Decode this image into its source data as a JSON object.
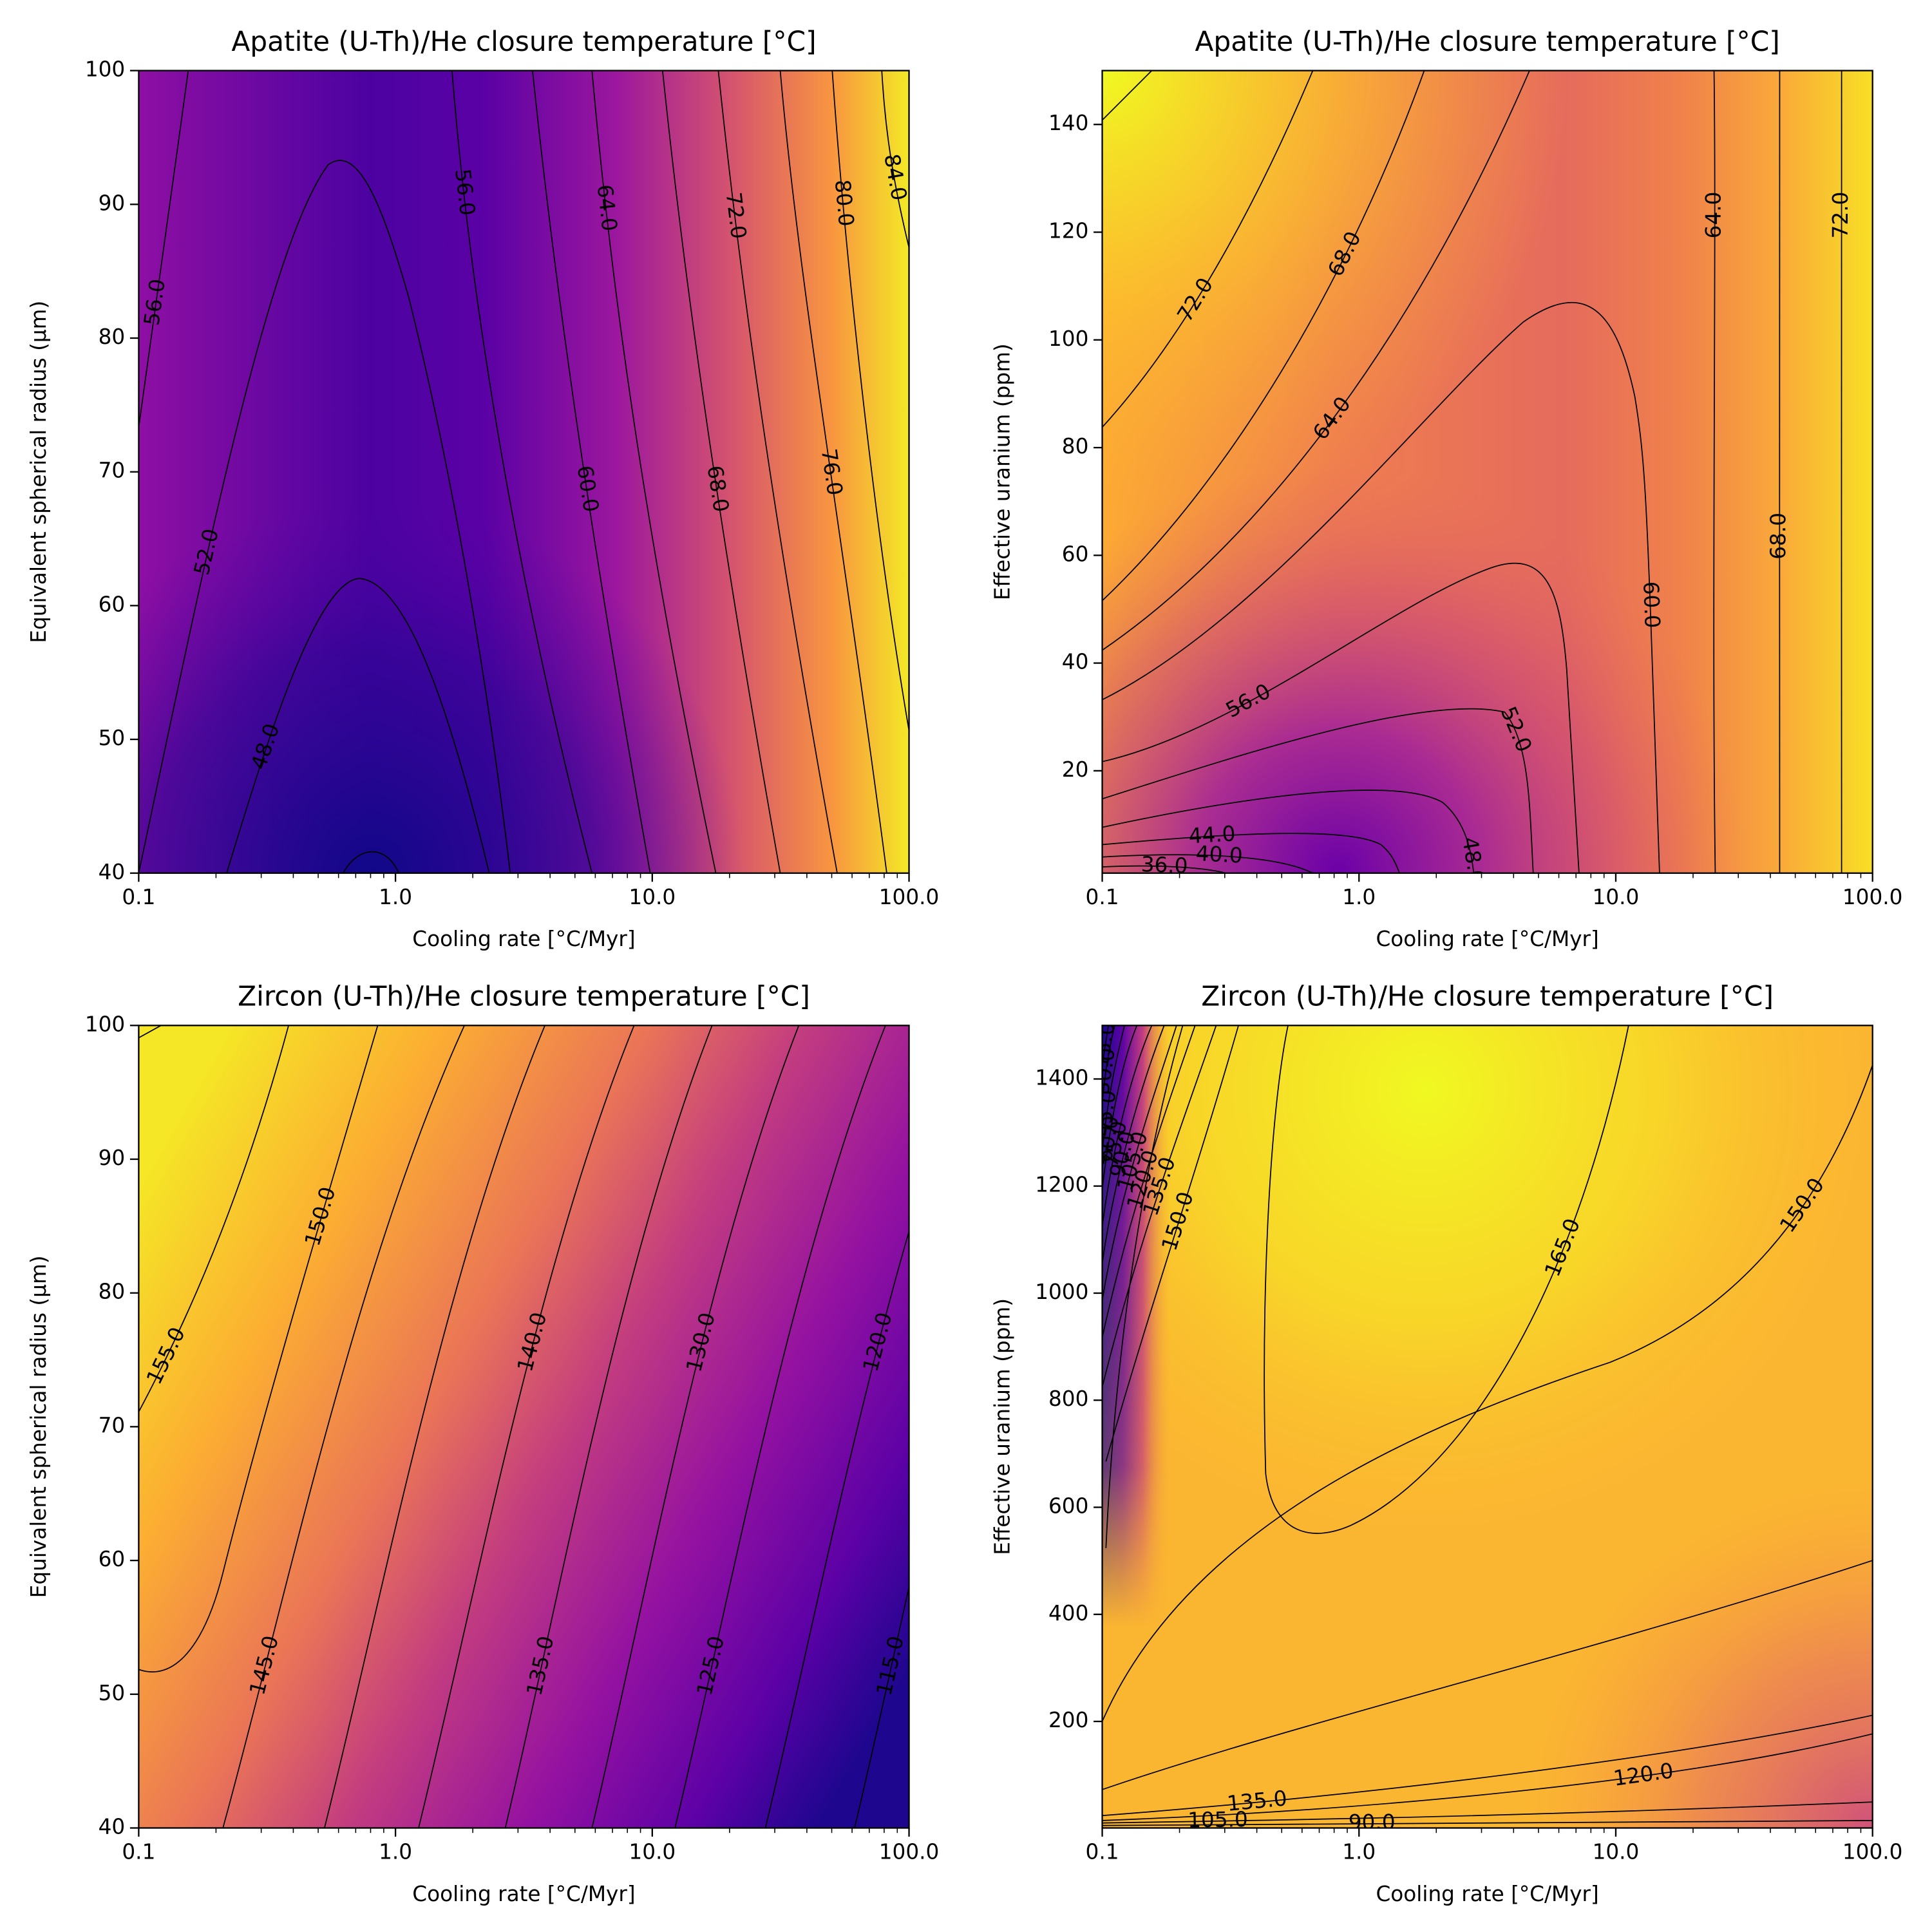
{
  "chart_data": [
    {
      "type": "contour",
      "title": "Apatite (U-Th)/He closure temperature [°C]",
      "xlabel": "Cooling rate [°C/Myr]",
      "ylabel": "Equivalent spherical radius (μm)",
      "xscale": "log",
      "xlim": [
        0.1,
        100
      ],
      "ylim": [
        40,
        100
      ],
      "xticks": [
        {
          "value": 0.1,
          "label": "0.1"
        },
        {
          "value": 1,
          "label": "1.0"
        },
        {
          "value": 10,
          "label": "10.0"
        },
        {
          "value": 100,
          "label": "100.0"
        }
      ],
      "yticks": [
        40,
        50,
        60,
        70,
        80,
        90,
        100
      ],
      "contour_labels": [
        {
          "value": 56,
          "label": "56.0"
        },
        {
          "value": 52,
          "label": "52.0"
        },
        {
          "value": 48,
          "label": "48.0"
        },
        {
          "value": 56,
          "label": "56.0"
        },
        {
          "value": 64,
          "label": "64.0"
        },
        {
          "value": 72,
          "label": "72.0"
        },
        {
          "value": 80,
          "label": "80.0"
        },
        {
          "value": 84,
          "label": "84.0"
        },
        {
          "value": 60,
          "label": "60.0"
        },
        {
          "value": 68,
          "label": "68.0"
        },
        {
          "value": 76,
          "label": "76.0"
        }
      ]
    },
    {
      "type": "contour",
      "title": "Apatite (U-Th)/He closure temperature [°C]",
      "xlabel": "Cooling rate [°C/Myr]",
      "ylabel": "Effective uranium (ppm)",
      "xscale": "log",
      "xlim": [
        0.1,
        100
      ],
      "ylim": [
        1,
        150
      ],
      "xticks": [
        {
          "value": 0.1,
          "label": "0.1"
        },
        {
          "value": 1,
          "label": "1.0"
        },
        {
          "value": 10,
          "label": "10.0"
        },
        {
          "value": 100,
          "label": "100.0"
        }
      ],
      "yticks": [
        20,
        40,
        60,
        80,
        100,
        120,
        140
      ],
      "contour_labels": [
        {
          "value": 72,
          "label": "72.0"
        },
        {
          "value": 68,
          "label": "68.0"
        },
        {
          "value": 64,
          "label": "64.0"
        },
        {
          "value": 56,
          "label": "56.0"
        },
        {
          "value": 52,
          "label": "52.0"
        },
        {
          "value": 44,
          "label": "44.0"
        },
        {
          "value": 40,
          "label": "40.0"
        },
        {
          "value": 36,
          "label": "36.0"
        },
        {
          "value": 48,
          "label": "48.0"
        },
        {
          "value": 64,
          "label": "64.0"
        },
        {
          "value": 72,
          "label": "72.0"
        },
        {
          "value": 60,
          "label": "60.0"
        },
        {
          "value": 68,
          "label": "68.0"
        }
      ]
    },
    {
      "type": "contour",
      "title": "Zircon (U-Th)/He closure temperature [°C]",
      "xlabel": "Cooling rate [°C/Myr]",
      "ylabel": "Equivalent spherical radius (μm)",
      "xscale": "log",
      "xlim": [
        0.1,
        100
      ],
      "ylim": [
        40,
        100
      ],
      "xticks": [
        {
          "value": 0.1,
          "label": "0.1"
        },
        {
          "value": 1,
          "label": "1.0"
        },
        {
          "value": 10,
          "label": "10.0"
        },
        {
          "value": 100,
          "label": "100.0"
        }
      ],
      "yticks": [
        40,
        50,
        60,
        70,
        80,
        90,
        100
      ],
      "contour_labels": [
        {
          "value": 155,
          "label": "155.0"
        },
        {
          "value": 150,
          "label": "150.0"
        },
        {
          "value": 145,
          "label": "145.0"
        },
        {
          "value": 140,
          "label": "140.0"
        },
        {
          "value": 135,
          "label": "135.0"
        },
        {
          "value": 130,
          "label": "130.0"
        },
        {
          "value": 125,
          "label": "125.0"
        },
        {
          "value": 120,
          "label": "120.0"
        },
        {
          "value": 115,
          "label": "115.0"
        }
      ]
    },
    {
      "type": "contour",
      "title": "Zircon (U-Th)/He closure temperature [°C]",
      "xlabel": "Cooling rate [°C/Myr]",
      "ylabel": "Effective uranium (ppm)",
      "xscale": "log",
      "xlim": [
        0.1,
        100
      ],
      "ylim": [
        1,
        1500
      ],
      "xticks": [
        {
          "value": 0.1,
          "label": "0.1"
        },
        {
          "value": 1,
          "label": "1.0"
        },
        {
          "value": 10,
          "label": "10.0"
        },
        {
          "value": 100,
          "label": "100.0"
        }
      ],
      "yticks": [
        200,
        400,
        600,
        800,
        1000,
        1200,
        1400
      ],
      "contour_labels": [
        {
          "value": 165,
          "label": "165.0"
        },
        {
          "value": 150,
          "label": "150.0"
        },
        {
          "value": 135,
          "label": "135.0"
        },
        {
          "value": 120,
          "label": "120.0"
        },
        {
          "value": 105,
          "label": "105.0"
        },
        {
          "value": 90,
          "label": "90.0"
        },
        {
          "value": 150,
          "label": "150.0"
        },
        {
          "value": 135,
          "label": "135.0"
        },
        {
          "value": 120,
          "label": "120.0"
        },
        {
          "value": 105,
          "label": "105.0"
        },
        {
          "value": 90,
          "label": "90.0"
        },
        {
          "value": 75,
          "label": "75.0"
        },
        {
          "value": 60,
          "label": "60.0"
        },
        {
          "value": 45,
          "label": "45.0"
        },
        {
          "value": 30,
          "label": "30.0"
        },
        {
          "value": 15,
          "label": "15.0"
        }
      ]
    }
  ]
}
